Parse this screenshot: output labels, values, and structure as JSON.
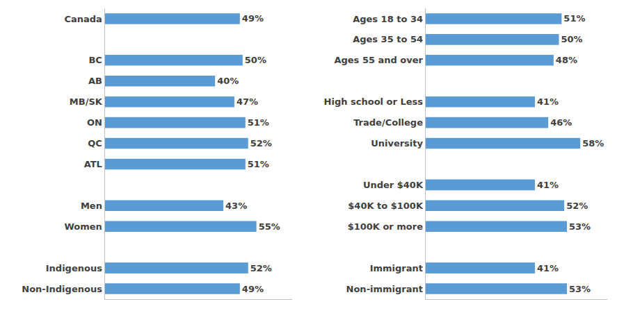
{
  "chart_data": [
    {
      "type": "bar",
      "orientation": "horizontal",
      "categories": [
        "Canada",
        null,
        "BC",
        "AB",
        "MB/SK",
        "ON",
        "QC",
        "ATL",
        null,
        "Men",
        "Women",
        null,
        "Indigenous",
        "Non-Indigenous"
      ],
      "values": [
        49,
        null,
        50,
        40,
        47,
        51,
        52,
        51,
        null,
        43,
        55,
        null,
        52,
        49
      ],
      "value_labels": [
        "49%",
        null,
        "50%",
        "40%",
        "47%",
        "51%",
        "52%",
        "51%",
        null,
        "43%",
        "55%",
        null,
        "52%",
        "49%"
      ],
      "color": "#5B9BD5",
      "xlim": [
        0,
        68
      ],
      "tick_labels": "y",
      "data_labels": true,
      "grid": false
    },
    {
      "type": "bar",
      "orientation": "horizontal",
      "categories": [
        "Ages 18 to 34",
        "Ages 35 to 54",
        "Ages 55 and over",
        null,
        "High school or Less",
        "Trade/College",
        "University",
        null,
        "Under $40K",
        "$40K to $100K",
        "$100K or more",
        null,
        "Immigrant",
        "Non-immigrant"
      ],
      "values": [
        51,
        50,
        48,
        null,
        41,
        46,
        58,
        null,
        41,
        52,
        53,
        null,
        41,
        53
      ],
      "value_labels": [
        "51%",
        "50%",
        "48%",
        null,
        "41%",
        "46%",
        "58%",
        null,
        "41%",
        "52%",
        "53%",
        null,
        "41%",
        "53%"
      ],
      "color": "#5B9BD5",
      "xlim": [
        0,
        68
      ],
      "tick_labels": "y",
      "data_labels": true,
      "grid": false
    }
  ]
}
